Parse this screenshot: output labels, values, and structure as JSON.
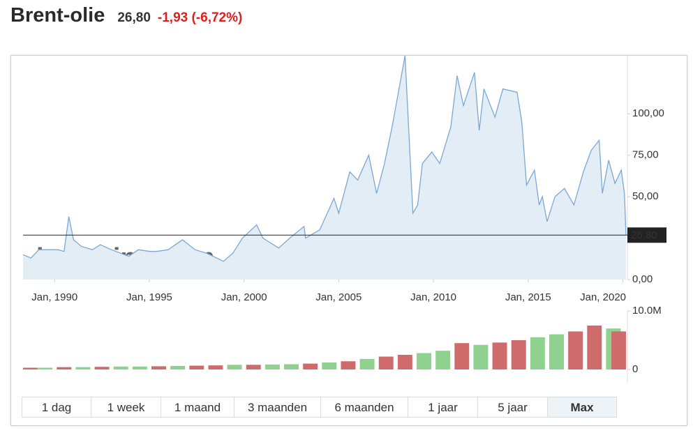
{
  "header": {
    "title": "Brent-olie",
    "price": "26,80",
    "change": "-1,93 (-6,72%)"
  },
  "chart_data": [
    {
      "type": "line",
      "watermark": "investing.com",
      "x": [
        "1988-05",
        "1988-10",
        "1989-03",
        "1989-09",
        "1990-03",
        "1990-07",
        "1990-10",
        "1991-01",
        "1991-06",
        "1992-01",
        "1992-06",
        "1993-01",
        "1993-12",
        "1994-06",
        "1995-01",
        "1995-06",
        "1996-01",
        "1996-10",
        "1997-06",
        "1998-01",
        "1998-12",
        "1999-06",
        "1999-12",
        "2000-09",
        "2001-01",
        "2001-11",
        "2002-06",
        "2003-03",
        "2003-04",
        "2004-01",
        "2004-10",
        "2005-01",
        "2005-08",
        "2006-01",
        "2006-08",
        "2007-01",
        "2007-06",
        "2007-11",
        "2008-07",
        "2008-12",
        "2009-03",
        "2009-06",
        "2009-12",
        "2010-05",
        "2010-12",
        "2011-04",
        "2011-08",
        "2012-03",
        "2012-06",
        "2012-09",
        "2013-04",
        "2013-09",
        "2014-06",
        "2014-09",
        "2014-12",
        "2015-05",
        "2015-08",
        "2015-10",
        "2016-01",
        "2016-06",
        "2016-12",
        "2017-06",
        "2017-12",
        "2018-05",
        "2018-10",
        "2018-12",
        "2019-04",
        "2019-08",
        "2019-12",
        "2020-02",
        "2020-03"
      ],
      "series": [
        {
          "color": "#7ba7d4",
          "values": [
            15,
            13,
            18,
            18,
            18,
            17,
            38,
            24,
            20,
            18,
            21,
            18,
            14,
            18,
            17,
            17,
            18,
            24,
            18,
            16,
            11,
            16,
            25,
            33,
            25,
            19,
            25,
            32,
            25,
            30,
            49,
            40,
            65,
            60,
            75,
            52,
            70,
            93,
            135,
            40,
            45,
            70,
            77,
            70,
            92,
            123,
            105,
            125,
            90,
            115,
            98,
            115,
            113,
            95,
            57,
            66,
            45,
            50,
            35,
            50,
            55,
            45,
            65,
            78,
            84,
            52,
            72,
            58,
            66,
            52,
            26.8
          ]
        }
      ],
      "xlim": [
        "1988-05",
        "2020-03"
      ],
      "xticks": [
        {
          "value": "1990-01",
          "label": "Jan, 1990"
        },
        {
          "value": "1995-01",
          "label": "Jan, 1995"
        },
        {
          "value": "2000-01",
          "label": "Jan, 2000"
        },
        {
          "value": "2005-01",
          "label": "Jan, 2005"
        },
        {
          "value": "2010-01",
          "label": "Jan, 2010"
        },
        {
          "value": "2015-01",
          "label": "Jan, 2015"
        },
        {
          "value": "2020-01",
          "label": "Jan, 2020"
        }
      ],
      "ylim": [
        0,
        135
      ],
      "yticks": [
        {
          "value": 0,
          "label": "0,00"
        },
        {
          "value": 50,
          "label": "50,00"
        },
        {
          "value": 75,
          "label": "75,00"
        },
        {
          "value": 100,
          "label": "100,00"
        }
      ]
    },
    {
      "type": "bar",
      "x": [
        "1988-07",
        "1989-07",
        "1990-07",
        "1991-07",
        "1992-07",
        "1993-07",
        "1994-07",
        "1995-07",
        "1996-07",
        "1997-07",
        "1998-07",
        "1999-07",
        "2000-07",
        "2001-07",
        "2002-07",
        "2003-07",
        "2004-07",
        "2005-07",
        "2006-07",
        "2007-07",
        "2008-07",
        "2009-07",
        "2010-07",
        "2011-07",
        "2012-07",
        "2013-07",
        "2014-07",
        "2015-07",
        "2016-07",
        "2017-07",
        "2018-07",
        "2019-07",
        "2020-01"
      ],
      "values": [
        300000,
        300000,
        400000,
        400000,
        450000,
        500000,
        500000,
        550000,
        600000,
        650000,
        700000,
        800000,
        800000,
        850000,
        900000,
        1000000,
        1200000,
        1400000,
        1800000,
        2200000,
        2500000,
        2800000,
        3200000,
        4500000,
        4200000,
        4600000,
        5000000,
        5500000,
        6000000,
        6500000,
        7500000,
        7000000,
        6500000
      ],
      "colors": [
        "#d06b6b",
        "#8fd18f",
        "#d06b6b",
        "#8fd18f",
        "#d06b6b",
        "#8fd18f",
        "#8fd18f",
        "#d06b6b",
        "#8fd18f",
        "#d06b6b",
        "#d06b6b",
        "#8fd18f",
        "#d06b6b",
        "#8fd18f",
        "#8fd18f",
        "#d06b6b",
        "#8fd18f",
        "#d06b6b",
        "#8fd18f",
        "#d06b6b",
        "#d06b6b",
        "#8fd18f",
        "#8fd18f",
        "#d06b6b",
        "#8fd18f",
        "#d06b6b",
        "#d06b6b",
        "#8fd18f",
        "#8fd18f",
        "#d06b6b",
        "#d06b6b",
        "#8fd18f",
        "#d06b6b"
      ],
      "xlim": [
        "1988-05",
        "2020-03"
      ],
      "ylim": [
        0,
        10000000
      ],
      "yticks": [
        {
          "value": 0,
          "label": "0"
        },
        {
          "value": 10000000,
          "label": "10.0M"
        }
      ]
    }
  ],
  "buttons": [
    "1 dag",
    "1 week",
    "1 maand",
    "3 maanden",
    "6 maanden",
    "1 jaar",
    "5 jaar",
    "Max"
  ],
  "active_button": 7
}
